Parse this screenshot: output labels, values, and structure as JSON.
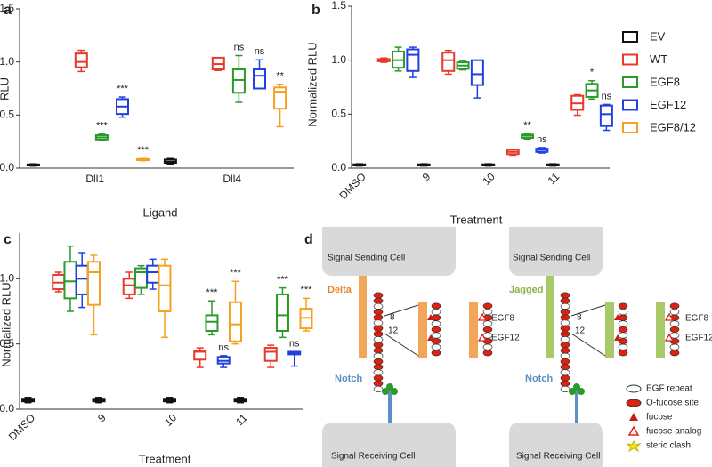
{
  "chart_data": [
    {
      "panel": "a",
      "type": "box",
      "x_label": "Ligand",
      "y_label": "RLU",
      "categories": [
        "Dll1",
        "Dll4"
      ],
      "ylim": [
        0,
        1.5
      ],
      "yticks": [
        {
          "value": 0,
          "label": "0.0"
        },
        0.5,
        {
          "value": 1,
          "label": "1.0"
        },
        1.5
      ],
      "legend": "right",
      "series": [
        {
          "name": "EV",
          "color": "#111111",
          "values": [
            {
              "min": 0.02,
              "q1": 0.025,
              "median": 0.03,
              "q3": 0.035,
              "max": 0.04
            },
            {
              "min": 0.04,
              "q1": 0.05,
              "median": 0.06,
              "q3": 0.08,
              "max": 0.09
            }
          ],
          "annotations": [
            null,
            null
          ]
        },
        {
          "name": "WT",
          "color": "#e8392a",
          "values": [
            {
              "min": 0.91,
              "q1": 0.95,
              "median": 1.0,
              "q3": 1.08,
              "max": 1.11
            },
            {
              "min": 0.92,
              "q1": 0.93,
              "median": 0.98,
              "q3": 1.04,
              "max": 1.04
            }
          ],
          "annotations": [
            null,
            null
          ]
        },
        {
          "name": "EGF8",
          "color": "#2a9a2a",
          "values": [
            {
              "min": 0.26,
              "q1": 0.27,
              "median": 0.29,
              "q3": 0.31,
              "max": 0.32
            },
            {
              "min": 0.62,
              "q1": 0.71,
              "median": 0.83,
              "q3": 0.93,
              "max": 1.06
            }
          ],
          "annotations": [
            "***",
            "ns"
          ]
        },
        {
          "name": "EGF12",
          "color": "#2040e0",
          "values": [
            {
              "min": 0.48,
              "q1": 0.51,
              "median": 0.58,
              "q3": 0.65,
              "max": 0.67
            },
            {
              "min": 0.75,
              "q1": 0.75,
              "median": 0.87,
              "q3": 0.93,
              "max": 1.02
            }
          ],
          "annotations": [
            "***",
            "ns"
          ]
        },
        {
          "name": "EGF8/12",
          "color": "#f5a020",
          "values": [
            {
              "min": 0.07,
              "q1": 0.075,
              "median": 0.08,
              "q3": 0.085,
              "max": 0.09
            },
            {
              "min": 0.39,
              "q1": 0.56,
              "median": 0.72,
              "q3": 0.76,
              "max": 0.79
            }
          ],
          "annotations": [
            "***",
            "**"
          ]
        }
      ]
    },
    {
      "panel": "b",
      "type": "box",
      "x_label": "Treatment",
      "y_label": "Normalized RLU",
      "categories": [
        "DMSO",
        "9",
        "10",
        "11"
      ],
      "ylim": [
        0,
        1.5
      ],
      "yticks": [
        {
          "value": 0,
          "label": "0.0"
        },
        0.5,
        {
          "value": 1,
          "label": "1.0"
        },
        1.5
      ],
      "series": [
        {
          "color": "#111111",
          "values": [
            {
              "min": 0.02,
              "q1": 0.025,
              "median": 0.03,
              "q3": 0.035,
              "max": 0.04
            },
            {
              "min": 0.02,
              "q1": 0.025,
              "median": 0.03,
              "q3": 0.035,
              "max": 0.04
            },
            {
              "min": 0.02,
              "q1": 0.025,
              "median": 0.03,
              "q3": 0.035,
              "max": 0.04
            },
            {
              "min": 0.02,
              "q1": 0.025,
              "median": 0.03,
              "q3": 0.035,
              "max": 0.04
            }
          ],
          "annotations": [
            null,
            null,
            null,
            null
          ]
        },
        {
          "color": "#e8392a",
          "values": [
            {
              "min": 0.98,
              "q1": 0.99,
              "median": 1.0,
              "q3": 1.01,
              "max": 1.02
            },
            {
              "min": 0.87,
              "q1": 0.9,
              "median": 1.0,
              "q3": 1.07,
              "max": 1.09
            },
            {
              "min": 0.12,
              "q1": 0.13,
              "median": 0.15,
              "q3": 0.17,
              "max": 0.17
            },
            {
              "min": 0.49,
              "q1": 0.54,
              "median": 0.6,
              "q3": 0.67,
              "max": 0.68
            }
          ],
          "annotations": [
            null,
            null,
            null,
            null
          ]
        },
        {
          "color": "#2a9a2a",
          "values": [
            {
              "min": 0.9,
              "q1": 0.93,
              "median": 1.0,
              "q3": 1.08,
              "max": 1.12
            },
            {
              "min": 0.91,
              "q1": 0.92,
              "median": 0.95,
              "q3": 0.98,
              "max": 0.99
            },
            {
              "min": 0.27,
              "q1": 0.28,
              "median": 0.3,
              "q3": 0.31,
              "max": 0.32
            },
            {
              "min": 0.64,
              "q1": 0.66,
              "median": 0.72,
              "q3": 0.78,
              "max": 0.81
            }
          ],
          "annotations": [
            null,
            null,
            "**",
            "*"
          ]
        },
        {
          "color": "#2040e0",
          "values": [
            {
              "min": 0.84,
              "q1": 0.9,
              "median": 1.05,
              "q3": 1.1,
              "max": 1.12
            },
            {
              "min": 0.65,
              "q1": 0.77,
              "median": 0.87,
              "q3": 1.0,
              "max": 1.0
            },
            {
              "min": 0.14,
              "q1": 0.15,
              "median": 0.17,
              "q3": 0.18,
              "max": 0.19
            },
            {
              "min": 0.35,
              "q1": 0.39,
              "median": 0.5,
              "q3": 0.58,
              "max": 0.59
            }
          ],
          "annotations": [
            null,
            null,
            "ns",
            "ns"
          ]
        }
      ]
    },
    {
      "panel": "c",
      "type": "box",
      "x_label": "Treatment",
      "y_label": "Normalized RLU",
      "categories": [
        "DMSO",
        "9",
        "10",
        "11"
      ],
      "ylim": [
        0,
        1.35
      ],
      "yticks": [
        {
          "value": 0,
          "label": "0.0"
        },
        0.5,
        {
          "value": 1,
          "label": "1.0"
        }
      ],
      "series": [
        {
          "color": "#111111",
          "values": [
            {
              "min": 0.05,
              "q1": 0.06,
              "median": 0.07,
              "q3": 0.08,
              "max": 0.09
            },
            {
              "min": 0.05,
              "q1": 0.06,
              "median": 0.07,
              "q3": 0.08,
              "max": 0.09
            },
            {
              "min": 0.05,
              "q1": 0.06,
              "median": 0.07,
              "q3": 0.08,
              "max": 0.09
            },
            {
              "min": 0.05,
              "q1": 0.06,
              "median": 0.07,
              "q3": 0.08,
              "max": 0.09
            }
          ],
          "annotations": [
            null,
            null,
            null,
            null
          ]
        },
        {
          "color": "#e8392a",
          "values": [
            {
              "min": 0.9,
              "q1": 0.92,
              "median": 0.97,
              "q3": 1.03,
              "max": 1.05
            },
            {
              "min": 0.85,
              "q1": 0.88,
              "median": 0.95,
              "q3": 1.0,
              "max": 1.05
            },
            {
              "min": 0.32,
              "q1": 0.38,
              "median": 0.44,
              "q3": 0.45,
              "max": 0.47
            },
            {
              "min": 0.32,
              "q1": 0.37,
              "median": 0.44,
              "q3": 0.47,
              "max": 0.49
            }
          ],
          "annotations": [
            null,
            null,
            null,
            null
          ]
        },
        {
          "color": "#2a9a2a",
          "values": [
            {
              "min": 0.75,
              "q1": 0.85,
              "median": 0.98,
              "q3": 1.13,
              "max": 1.25
            },
            {
              "min": 0.88,
              "q1": 0.93,
              "median": 1.05,
              "q3": 1.08,
              "max": 1.1
            },
            {
              "min": 0.57,
              "q1": 0.6,
              "median": 0.67,
              "q3": 0.72,
              "max": 0.83
            },
            {
              "min": 0.55,
              "q1": 0.6,
              "median": 0.72,
              "q3": 0.88,
              "max": 0.93
            }
          ],
          "annotations": [
            null,
            null,
            "***",
            "***"
          ]
        },
        {
          "color": "#2040e0",
          "values": [
            {
              "min": 0.78,
              "q1": 0.88,
              "median": 1.0,
              "q3": 1.1,
              "max": 1.2
            },
            {
              "min": 0.92,
              "q1": 0.97,
              "median": 1.05,
              "q3": 1.1,
              "max": 1.15
            },
            {
              "min": 0.32,
              "q1": 0.35,
              "median": 0.37,
              "q3": 0.4,
              "max": 0.41
            },
            {
              "min": 0.33,
              "q1": 0.42,
              "median": 0.43,
              "q3": 0.44,
              "max": 0.44
            }
          ],
          "annotations": [
            null,
            null,
            "ns",
            "ns"
          ]
        },
        {
          "color": "#f5a020",
          "values": [
            {
              "min": 0.57,
              "q1": 0.8,
              "median": 1.05,
              "q3": 1.13,
              "max": 1.18
            },
            {
              "min": 0.55,
              "q1": 0.75,
              "median": 0.95,
              "q3": 1.1,
              "max": 1.15
            },
            {
              "min": 0.5,
              "q1": 0.52,
              "median": 0.65,
              "q3": 0.82,
              "max": 0.98
            },
            {
              "min": 0.6,
              "q1": 0.62,
              "median": 0.7,
              "q3": 0.77,
              "max": 0.85
            }
          ],
          "annotations": [
            null,
            null,
            "***",
            "***"
          ]
        }
      ]
    }
  ],
  "diagram": {
    "panel": "d",
    "left": {
      "sending": "Signal Sending Cell",
      "ligand": "Delta",
      "receptor": "Notch",
      "receiving": "Signal Receiving Cell",
      "site_a": "8",
      "site_b": "12",
      "inset_a": "EGF8",
      "inset_b": "EGF12"
    },
    "right": {
      "sending": "Signal Sending Cell",
      "ligand": "Jagged",
      "receptor": "Notch",
      "receiving": "Signal Receiving Cell",
      "site_a": "8",
      "site_b": "12",
      "inset_a": "EGF8",
      "inset_b": "EGF12"
    },
    "key": [
      "EGF repeat",
      "O-fucose site",
      "fucose",
      "fucose analog",
      "steric clash"
    ]
  }
}
